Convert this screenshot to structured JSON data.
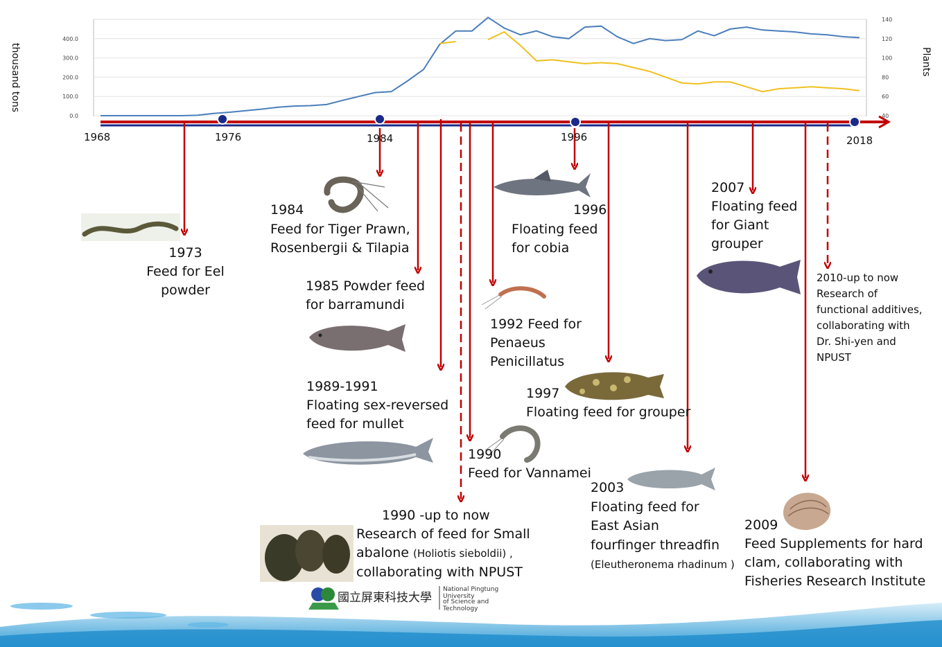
{
  "chart_data": {
    "type": "line",
    "ylabel_left": "thousand tons",
    "ylabel_right": "Plants",
    "yticks_left": [
      "0.0",
      "100.0",
      "200.0",
      "300.0",
      "400.0"
    ],
    "yticks_right": [
      "40",
      "60",
      "80",
      "100",
      "120",
      "140"
    ],
    "ylim_left": [
      0,
      500
    ],
    "ylim_right": [
      40,
      140
    ],
    "x": [
      1968,
      1969,
      1970,
      1971,
      1972,
      1973,
      1974,
      1975,
      1976,
      1977,
      1978,
      1979,
      1980,
      1981,
      1982,
      1983,
      1984,
      1985,
      1986,
      1987,
      1988,
      1989,
      1990,
      1991,
      1992,
      1993,
      1994,
      1995,
      1996,
      1997,
      1998,
      1999,
      2000,
      2001,
      2002,
      2003,
      2004,
      2005,
      2006,
      2007,
      2008,
      2009,
      2010,
      2011,
      2012,
      2013,
      2014,
      2015
    ],
    "series": [
      {
        "color": "#4a7ebb",
        "values": [
          0,
          0,
          0,
          0,
          0,
          0,
          2,
          12,
          18,
          26,
          34,
          44,
          50,
          52,
          58,
          80,
          100,
          120,
          125,
          180,
          240,
          370,
          440,
          440,
          510,
          455,
          420,
          440,
          410,
          400,
          460,
          465,
          410,
          375,
          400,
          390,
          395,
          440,
          415,
          450,
          460,
          445,
          440,
          435,
          425,
          420,
          410,
          405
        ]
      },
      {
        "color": "#f0c020",
        "values": [
          null,
          null,
          null,
          null,
          null,
          null,
          null,
          null,
          null,
          null,
          null,
          null,
          null,
          null,
          null,
          null,
          null,
          null,
          null,
          null,
          null,
          115,
          117,
          null,
          119,
          127,
          113,
          97,
          98,
          96,
          94,
          95,
          94,
          90,
          86,
          80,
          74,
          73,
          75,
          75,
          70,
          65,
          68,
          69,
          70,
          69,
          68,
          66
        ]
      }
    ]
  },
  "timeline": {
    "years": [
      "1968",
      "1976",
      "1984",
      "1996",
      "2018"
    ]
  },
  "events": {
    "e1973": {
      "text": "1973\nFeed for Eel powder"
    },
    "e1984": {
      "year": "1984",
      "text": "Feed for Tiger Prawn,\nRosenbergii & Tilapia"
    },
    "e1985": {
      "text": "1985 Powder feed\nfor barramundi"
    },
    "e1989": {
      "text": "1989-1991\nFloating sex-reversed\nfeed for mullet"
    },
    "e1990v": {
      "text": "1990\nFeed for Vannamei"
    },
    "e1990a": {
      "line1": "1990 -up to now",
      "line2": "Research of feed for Small",
      "line3a": "abalone ",
      "line3b": "(Holiotis sieboldii) ,",
      "line4": "collaborating  with NPUST"
    },
    "e1992": {
      "text": "1992 Feed for\nPenaeus\nPenicillatus"
    },
    "e1996": {
      "year": "1996",
      "text": "Floating feed\nfor cobia"
    },
    "e1997": {
      "text": "1997\nFloating feed for grouper"
    },
    "e2003": {
      "line1": "2003",
      "line2": "Floating feed for",
      "line3": "East Asian",
      "line4": "fourfinger threadfin",
      "line5": "(Eleutheronema rhadinum )"
    },
    "e2007": {
      "text": "2007\nFloating feed\nfor Giant\ngrouper"
    },
    "e2009": {
      "text": "2009\nFeed Supplements for hard\nclam, collaborating with\nFisheries Research Institute"
    },
    "e2010": {
      "text": "2010-up to now\nResearch of\nfunctional additives,\ncollaborating with\nDr. Shi-yen and\nNPUST"
    }
  },
  "logo": {
    "chinese": "國立屏東科技大學",
    "english1": "National Pingtung University",
    "english2": "of Science and Technology"
  },
  "colors": {
    "arrow": "#c00000",
    "timeline_blue": "#1a2a8a",
    "line_blue": "#4a7ebb",
    "line_yellow": "#f0c020"
  }
}
